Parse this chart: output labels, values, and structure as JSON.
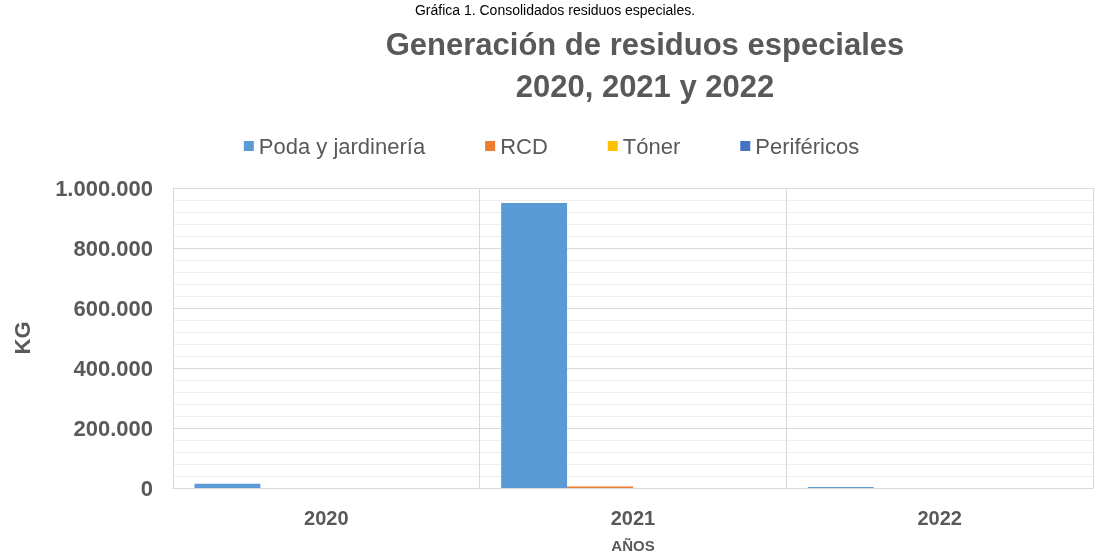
{
  "chart_data": {
    "type": "bar",
    "title": "Generación de residuos especiales\n2020, 2021 y 2022",
    "annotations": [
      "Gráfica 1. Consolidados residuos especiales."
    ],
    "xlabel": "AÑOS",
    "ylabel": "KG",
    "categories": [
      "2020",
      "2021",
      "2022"
    ],
    "series": [
      {
        "name": "Poda y jardinería",
        "color": "#5b9bd5",
        "values": [
          14000,
          950000,
          3000
        ]
      },
      {
        "name": "RCD",
        "color": "#ed7d31",
        "values": [
          0,
          5000,
          0
        ]
      },
      {
        "name": "Tóner",
        "color": "#ffc000",
        "values": [
          0,
          0,
          0
        ]
      },
      {
        "name": "Periféricos",
        "color": "#4472c4",
        "values": [
          0,
          0,
          0
        ]
      }
    ],
    "ylim": [
      0,
      1000000
    ],
    "yticks": [
      0,
      {
        "value": 200000,
        "label": "200.000"
      },
      {
        "value": 400000,
        "label": "400.000"
      },
      {
        "value": 600000,
        "label": "600.000"
      },
      {
        "value": 800000,
        "label": "800.000"
      },
      {
        "value": 1000000,
        "label": "1.000.000"
      }
    ],
    "grid": true,
    "legend": "top"
  }
}
